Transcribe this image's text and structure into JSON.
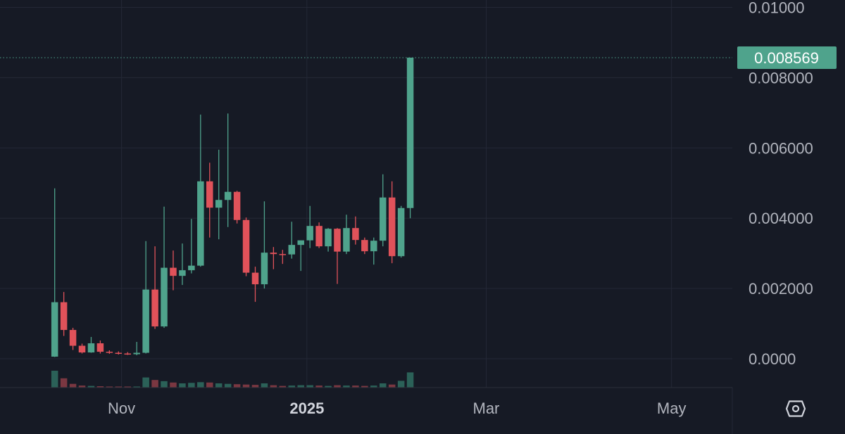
{
  "chart_data": {
    "type": "candlestick",
    "y_ticks": [
      {
        "value": 0.0,
        "label": "0.0000"
      },
      {
        "value": 0.002,
        "label": "0.002000"
      },
      {
        "value": 0.004,
        "label": "0.004000"
      },
      {
        "value": 0.006,
        "label": "0.006000"
      },
      {
        "value": 0.008,
        "label": "0.008000"
      },
      {
        "value": 0.01,
        "label": "0.01000"
      }
    ],
    "x_ticks": [
      {
        "date": "2024-11-01",
        "label": "Nov",
        "bold": false
      },
      {
        "date": "2025-01-01",
        "label": "2025",
        "bold": true
      },
      {
        "date": "2025-03-01",
        "label": "Mar",
        "bold": false
      },
      {
        "date": "2025-05-01",
        "label": "May",
        "bold": false
      }
    ],
    "ylim": [
      -0.00082,
      0.01021
    ],
    "xlim": [
      "2024-09-22",
      "2025-05-21"
    ],
    "last_price": {
      "value": 0.008569,
      "label": "0.008569"
    },
    "grid": true,
    "colors": {
      "background": "#161a25",
      "grid": "#242836",
      "up": "#4fa38c",
      "down": "#e0525a",
      "up_volume": "#2f6f62",
      "down_volume": "#8c3d46",
      "axis_text": "#b2b5be",
      "price_label_bg": "#4fa38c",
      "price_label_text": "#ffffff"
    },
    "candles": [
      {
        "date": "2024-10-10",
        "open": 6e-05,
        "high": 0.00485,
        "low": 5e-05,
        "close": 0.00161,
        "volume": 1.0
      },
      {
        "date": "2024-10-13",
        "open": 0.00161,
        "high": 0.0019,
        "low": 0.00065,
        "close": 0.00082,
        "volume": 0.55
      },
      {
        "date": "2024-10-16",
        "open": 0.00082,
        "high": 0.00088,
        "low": 0.00025,
        "close": 0.00037,
        "volume": 0.22
      },
      {
        "date": "2024-10-19",
        "open": 0.00037,
        "high": 0.00043,
        "low": 0.00015,
        "close": 0.00018,
        "volume": 0.12
      },
      {
        "date": "2024-10-22",
        "open": 0.00018,
        "high": 0.00062,
        "low": 0.00017,
        "close": 0.00044,
        "volume": 0.1
      },
      {
        "date": "2024-10-25",
        "open": 0.00044,
        "high": 0.00052,
        "low": 0.00015,
        "close": 0.0002,
        "volume": 0.08
      },
      {
        "date": "2024-10-28",
        "open": 0.0002,
        "high": 0.00024,
        "low": 0.00014,
        "close": 0.00017,
        "volume": 0.06
      },
      {
        "date": "2024-10-31",
        "open": 0.00017,
        "high": 0.00021,
        "low": 0.00012,
        "close": 0.00015,
        "volume": 0.05
      },
      {
        "date": "2024-11-03",
        "open": 0.00015,
        "high": 0.00019,
        "low": 0.00011,
        "close": 0.00013,
        "volume": 0.05
      },
      {
        "date": "2024-11-06",
        "open": 0.00013,
        "high": 0.00048,
        "low": 0.0001,
        "close": 0.00017,
        "volume": 0.06
      },
      {
        "date": "2024-11-09",
        "open": 0.00017,
        "high": 0.00335,
        "low": 0.00015,
        "close": 0.00197,
        "volume": 0.6
      },
      {
        "date": "2024-11-12",
        "open": 0.00197,
        "high": 0.0032,
        "low": 0.00085,
        "close": 0.00092,
        "volume": 0.45
      },
      {
        "date": "2024-11-15",
        "open": 0.00092,
        "high": 0.00433,
        "low": 0.00088,
        "close": 0.00259,
        "volume": 0.38
      },
      {
        "date": "2024-11-18",
        "open": 0.00259,
        "high": 0.00308,
        "low": 0.00195,
        "close": 0.00236,
        "volume": 0.3
      },
      {
        "date": "2024-11-21",
        "open": 0.00236,
        "high": 0.00328,
        "low": 0.0021,
        "close": 0.00252,
        "volume": 0.25
      },
      {
        "date": "2024-11-24",
        "open": 0.00252,
        "high": 0.00398,
        "low": 0.00243,
        "close": 0.00265,
        "volume": 0.28
      },
      {
        "date": "2024-11-27",
        "open": 0.00265,
        "high": 0.00695,
        "low": 0.00262,
        "close": 0.00505,
        "volume": 0.32
      },
      {
        "date": "2024-11-30",
        "open": 0.00505,
        "high": 0.00558,
        "low": 0.00345,
        "close": 0.0043,
        "volume": 0.3
      },
      {
        "date": "2024-12-03",
        "open": 0.0043,
        "high": 0.00595,
        "low": 0.0034,
        "close": 0.00452,
        "volume": 0.25
      },
      {
        "date": "2024-12-06",
        "open": 0.00452,
        "high": 0.00698,
        "low": 0.00375,
        "close": 0.00475,
        "volume": 0.22
      },
      {
        "date": "2024-12-09",
        "open": 0.00475,
        "high": 0.00478,
        "low": 0.00385,
        "close": 0.00395,
        "volume": 0.2
      },
      {
        "date": "2024-12-12",
        "open": 0.00395,
        "high": 0.00402,
        "low": 0.00235,
        "close": 0.00245,
        "volume": 0.18
      },
      {
        "date": "2024-12-15",
        "open": 0.00245,
        "high": 0.00262,
        "low": 0.00162,
        "close": 0.00212,
        "volume": 0.16
      },
      {
        "date": "2024-12-18",
        "open": 0.00212,
        "high": 0.00448,
        "low": 0.002,
        "close": 0.00302,
        "volume": 0.25
      },
      {
        "date": "2024-12-21",
        "open": 0.00302,
        "high": 0.00318,
        "low": 0.00255,
        "close": 0.00298,
        "volume": 0.14
      },
      {
        "date": "2024-12-24",
        "open": 0.00298,
        "high": 0.0031,
        "low": 0.0027,
        "close": 0.00297,
        "volume": 0.1
      },
      {
        "date": "2024-12-27",
        "open": 0.00297,
        "high": 0.0039,
        "low": 0.00285,
        "close": 0.00324,
        "volume": 0.12
      },
      {
        "date": "2024-12-30",
        "open": 0.00324,
        "high": 0.00335,
        "low": 0.0025,
        "close": 0.00337,
        "volume": 0.14
      },
      {
        "date": "2025-01-02",
        "open": 0.00337,
        "high": 0.00435,
        "low": 0.00315,
        "close": 0.00378,
        "volume": 0.14
      },
      {
        "date": "2025-01-05",
        "open": 0.00378,
        "high": 0.00388,
        "low": 0.00315,
        "close": 0.0032,
        "volume": 0.12
      },
      {
        "date": "2025-01-08",
        "open": 0.0032,
        "high": 0.00372,
        "low": 0.00305,
        "close": 0.0037,
        "volume": 0.1
      },
      {
        "date": "2025-01-11",
        "open": 0.0037,
        "high": 0.00372,
        "low": 0.00213,
        "close": 0.00305,
        "volume": 0.14
      },
      {
        "date": "2025-01-14",
        "open": 0.00305,
        "high": 0.0041,
        "low": 0.00298,
        "close": 0.00372,
        "volume": 0.12
      },
      {
        "date": "2025-01-17",
        "open": 0.00372,
        "high": 0.00405,
        "low": 0.00325,
        "close": 0.00338,
        "volume": 0.12
      },
      {
        "date": "2025-01-20",
        "open": 0.00338,
        "high": 0.00345,
        "low": 0.00298,
        "close": 0.00306,
        "volume": 0.1
      },
      {
        "date": "2025-01-23",
        "open": 0.00306,
        "high": 0.00345,
        "low": 0.00268,
        "close": 0.00336,
        "volume": 0.12
      },
      {
        "date": "2025-01-26",
        "open": 0.00336,
        "high": 0.00525,
        "low": 0.0032,
        "close": 0.00459,
        "volume": 0.25
      },
      {
        "date": "2025-01-29",
        "open": 0.00459,
        "high": 0.00505,
        "low": 0.00272,
        "close": 0.00292,
        "volume": 0.18
      },
      {
        "date": "2025-02-01",
        "open": 0.00292,
        "high": 0.00435,
        "low": 0.00288,
        "close": 0.00429,
        "volume": 0.4
      },
      {
        "date": "2025-02-04",
        "open": 0.00429,
        "high": 0.00857,
        "low": 0.004,
        "close": 0.008569,
        "volume": 0.9
      }
    ]
  }
}
